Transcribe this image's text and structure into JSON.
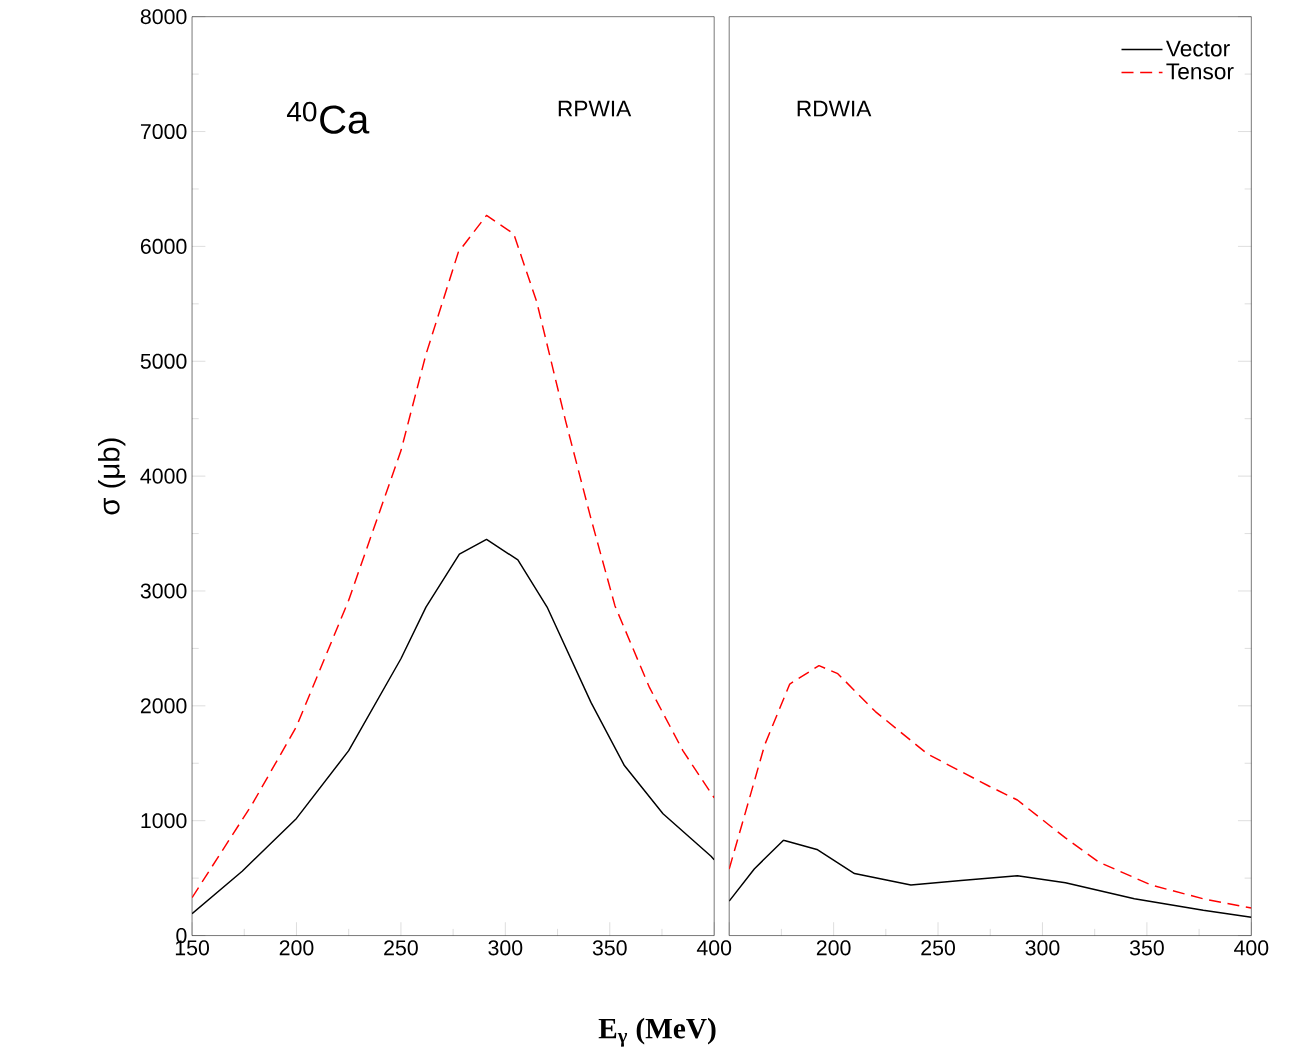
{
  "chart_data": [
    {
      "type": "line",
      "ylabel": "σ (μb)",
      "xlabel": "E$_{γ}$ (MeV)",
      "annotations": [
        "$^{40}$Ca",
        "RPWIA"
      ],
      "xlim": [
        150,
        400
      ],
      "xticks": [
        150,
        200,
        250,
        300,
        350,
        400
      ],
      "ylim": [
        0,
        8000
      ],
      "yticks": [
        0,
        1000,
        2000,
        3000,
        4000,
        5000,
        6000,
        7000,
        8000
      ],
      "series": [
        {
          "color": "#000000",
          "line_style": "solid",
          "x": [
            150,
            174,
            200,
            225,
            250,
            262,
            278,
            291,
            306,
            320,
            341,
            357,
            375.5,
            398.5,
            400
          ],
          "values": [
            190,
            560,
            1020,
            1610,
            2410,
            2860,
            3320,
            3450,
            3270,
            2860,
            2030,
            1480,
            1060,
            690,
            660
          ]
        },
        {
          "color": "#ff0000",
          "line_style": "dashed",
          "x": [
            150,
            179,
            200,
            225,
            250,
            262,
            277.5,
            291,
            304,
            315,
            329,
            341,
            352.5,
            369,
            385,
            398.5,
            400
          ],
          "values": [
            330,
            1150,
            1820,
            2920,
            4220,
            5060,
            5950,
            6270,
            6110,
            5520,
            4470,
            3630,
            2870,
            2160,
            1610,
            1240,
            1200
          ]
        }
      ]
    },
    {
      "type": "line",
      "annotations": [
        "RDWIA"
      ],
      "legend": "top right",
      "tick_labels": "x",
      "xlim": [
        150,
        400
      ],
      "xticks": [
        {
          "value": 150,
          "label": null
        },
        200,
        250,
        300,
        350,
        400
      ],
      "ylim": [
        0,
        8000
      ],
      "yticks": [
        0,
        1000,
        2000,
        3000,
        4000,
        5000,
        6000,
        7000,
        8000
      ],
      "series": [
        {
          "name": "Vector",
          "color": "#000000",
          "line_style": "solid",
          "x": [
            150,
            162,
            176,
            192,
            210,
            237,
            261,
            288,
            311,
            344,
            377,
            400
          ],
          "values": [
            300,
            580,
            830,
            750,
            540,
            440,
            480,
            520,
            460,
            320,
            220,
            160
          ]
        },
        {
          "name": "Tensor",
          "color": "#ff0000",
          "line_style": "dashed",
          "x": [
            150,
            159,
            167,
            179,
            193,
            202,
            220,
            245,
            274.5,
            288,
            311,
            327,
            352,
            377,
            400
          ],
          "values": [
            580,
            1150,
            1660,
            2190,
            2350,
            2280,
            1950,
            1580,
            1300,
            1180,
            850,
            640,
            440,
            320,
            240
          ]
        }
      ]
    }
  ]
}
